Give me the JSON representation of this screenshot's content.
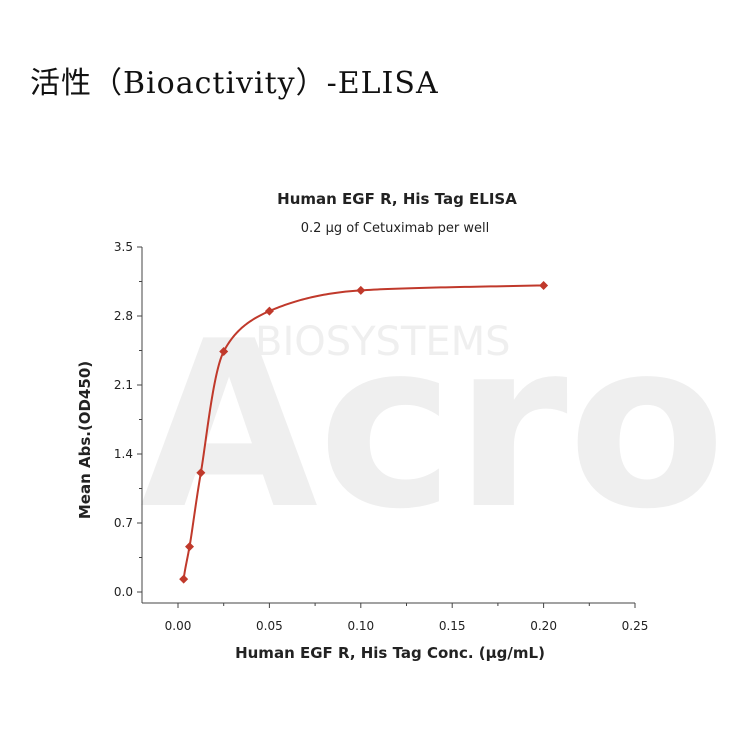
{
  "page": {
    "heading": "活性（Bioactivity）-ELISA"
  },
  "watermark": {
    "large": "Acro",
    "small": "BIOSYSTEMS"
  },
  "chart_data": {
    "type": "scatter",
    "title": "Human EGF R, His Tag ELISA",
    "subtitle": "0.2 µg of Cetuximab per well",
    "xlabel": "Human EGF R, His Tag Conc. (µg/mL)",
    "ylabel": "Mean Abs.(OD450)",
    "xlim": [
      0,
      0.25
    ],
    "ylim": [
      0,
      3.5
    ],
    "x_ticks": [
      "0.00",
      "0.05",
      "0.10",
      "0.15",
      "0.20",
      "0.25"
    ],
    "y_ticks": [
      "0.0",
      "0.7",
      "1.4",
      "2.1",
      "2.8",
      "3.5"
    ],
    "color": "#c0392b",
    "fit_curve": true,
    "grid": false,
    "legend": "none",
    "series": [
      {
        "x": [
          0.0031,
          0.0063,
          0.0125,
          0.025,
          0.05,
          0.1,
          0.2
        ],
        "y": [
          0.13,
          0.46,
          1.21,
          2.44,
          2.85,
          3.06,
          3.11
        ]
      }
    ]
  }
}
